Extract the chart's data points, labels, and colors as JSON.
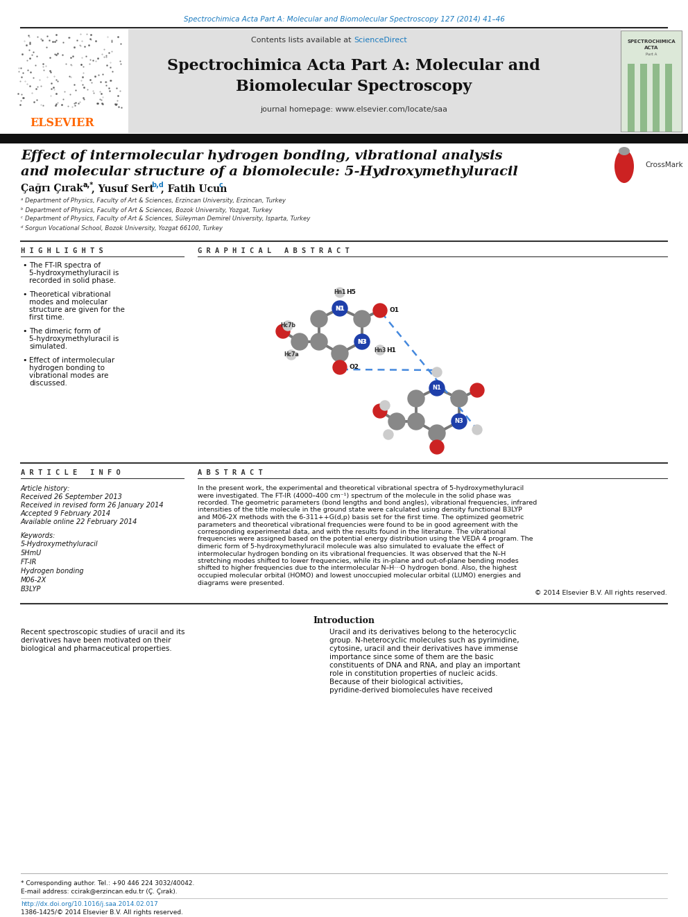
{
  "page_bg": "#ffffff",
  "top_citation": "Spectrochimica Acta Part A: Molecular and Biomolecular Spectroscopy 127 (2014) 41–46",
  "top_citation_color": "#1a7abf",
  "header_bg": "#e0e0e0",
  "journal_title_line1": "Spectrochimica Acta Part A: Molecular and",
  "journal_title_line2": "Biomolecular Spectroscopy",
  "journal_homepage": "journal homepage: www.elsevier.com/locate/saa",
  "elsevier_color": "#ff6600",
  "black_bar_color": "#111111",
  "article_title_line1": "Effect of intermolecular hydrogen bonding, vibrational analysis",
  "article_title_line2": "and molecular structure of a biomolecule: 5-Hydroxymethyluracil",
  "author1": "Çağrı Çırak",
  "author1_super": "a,*",
  "author2": ", Yusuf Sert",
  "author2_super": "b,d",
  "author3": ", Fatih Ucun",
  "author3_super": "c",
  "affil_a": "ᵃ Department of Physics, Faculty of Art & Sciences, Erzincan University, Erzincan, Turkey",
  "affil_b": "ᵇ Department of Physics, Faculty of Art & Sciences, Bozok University, Yozgat, Turkey",
  "affil_c": "ᶜ Department of Physics, Faculty of Art & Sciences, Süleyman Demirel University, Isparta, Turkey",
  "affil_d": "ᵈ Sorgun Vocational School, Bozok University, Yozgat 66100, Turkey",
  "highlights_title": "H I G H L I G H T S",
  "highlights": [
    "The FT-IR spectra of 5-hydroxymethyluracil is recorded in solid phase.",
    "Theoretical vibrational modes and molecular structure are given for the first time.",
    "The dimeric form of 5-hydroxymethyluracil is simulated.",
    "Effect of intermolecular hydrogen bonding to vibrational modes are discussed."
  ],
  "graphical_abstract_title": "G R A P H I C A L   A B S T R A C T",
  "article_info_title": "A R T I C L E   I N F O",
  "article_history_label": "Article history:",
  "received": "Received 26 September 2013",
  "received_revised": "Received in revised form 26 January 2014",
  "accepted": "Accepted 9 February 2014",
  "available": "Available online 22 February 2014",
  "keywords_label": "Keywords:",
  "keywords": [
    "5-Hydroxymethyluracil",
    "5HmU",
    "FT-IR",
    "Hydrogen bonding",
    "M06-2X",
    "B3LYP"
  ],
  "abstract_title": "A B S T R A C T",
  "abstract_text": "In the present work, the experimental and theoretical vibrational spectra of 5-hydroxymethyluracil were investigated. The FT-IR (4000–400 cm⁻¹) spectrum of the molecule in the solid phase was recorded. The geometric parameters (bond lengths and bond angles), vibrational frequencies, infrared intensities of the title molecule in the ground state were calculated using density functional B3LYP and M06-2X methods with the 6-311++G(d,p) basis set for the first time. The optimized geometric parameters and theoretical vibrational frequencies were found to be in good agreement with the corresponding experimental data, and with the results found in the literature. The vibrational frequencies were assigned based on the potential energy distribution using the VEDA 4 program. The dimeric form of 5-hydroxymethyluracil molecule was also simulated to evaluate the effect of intermolecular hydrogen bonding on its vibrational frequencies. It was observed that the N–H stretching modes shifted to lower frequencies, while its in-plane and out-of-plane bending modes shifted to higher frequencies due to the intermolecular N–H···O hydrogen bond. Also, the highest occupied molecular orbital (HOMO) and lowest unoccupied molecular orbital (LUMO) energies and diagrams were presented.",
  "copyright_abstract": "© 2014 Elsevier B.V. All rights reserved.",
  "intro_title": "Introduction",
  "intro_col1": "Recent spectroscopic studies of uracil and its derivatives have been motivated on their biological and pharmaceutical properties.",
  "intro_col2": "Uracil and its derivatives belong to the heterocyclic group. N-heterocyclic molecules such as pyrimidine, cytosine, uracil and their derivatives have immense importance since some of them are the basic constituents of DNA and RNA, and play an important role in constitution properties of nucleic acids. Because of their biological activities, pyridine-derived biomolecules have received",
  "footnote_star": "* Corresponding author. Tel.: +90 446 224 3032/40042.",
  "footnote_email": "E-mail address: ccirak@erzincan.edu.tr (Ç. Çırak).",
  "doi_text": "http://dx.doi.org/10.1016/j.saa.2014.02.017",
  "doi_color": "#1a7abf",
  "issn_text": "1386-1425/© 2014 Elsevier B.V. All rights reserved."
}
